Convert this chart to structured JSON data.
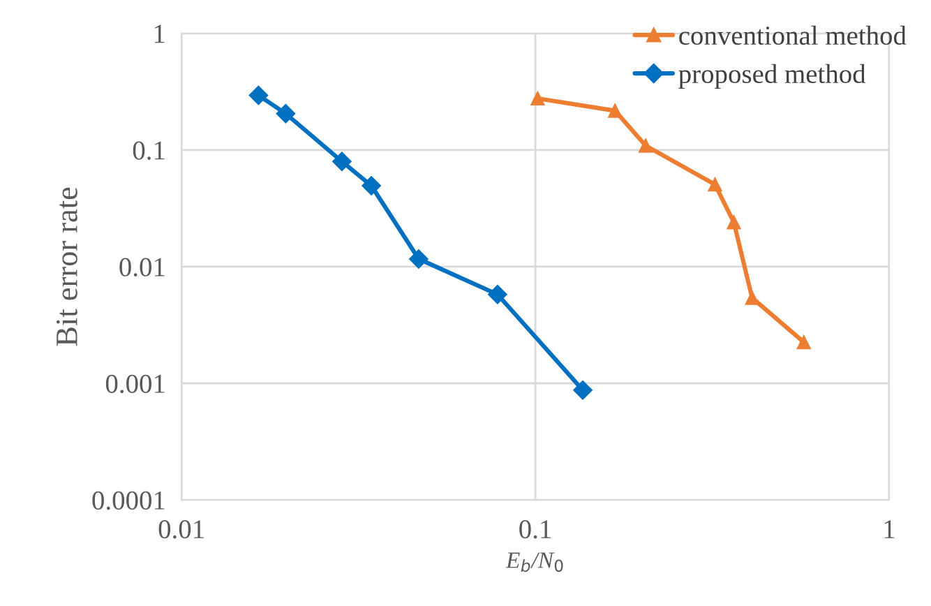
{
  "chart_data": {
    "type": "line",
    "xlabel": "E$_{b}$/N$_{0}$",
    "ylabel": "Bit error rate",
    "log": "xy",
    "xlim": [
      0.01,
      1
    ],
    "ylim": [
      0.0001,
      1
    ],
    "xticks": [
      0.01,
      0.1,
      1
    ],
    "yticks": [
      0.0001,
      0.001,
      0.01,
      0.1,
      1
    ],
    "grid": true,
    "legend": "top right",
    "line_style": "solid",
    "series": [
      {
        "name": "conventional method",
        "color": "#ed7d31",
        "marker": "triangle",
        "x": [
          0.1015,
          0.168,
          0.205,
          0.322,
          0.364,
          0.41,
          0.574
        ],
        "values": [
          0.277,
          0.217,
          0.109,
          0.0506,
          0.024,
          0.0054,
          0.00225
        ]
      },
      {
        "name": "proposed method",
        "color": "#0070c0",
        "marker": "diamond",
        "x": [
          0.0165,
          0.0197,
          0.0284,
          0.0344,
          0.0468,
          0.0782,
          0.1362
        ],
        "values": [
          0.294,
          0.205,
          0.0797,
          0.0494,
          0.01164,
          0.00578,
          0.000875
        ]
      }
    ]
  }
}
